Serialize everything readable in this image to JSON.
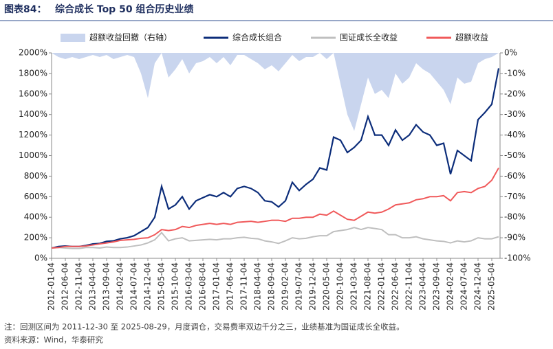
{
  "chart_data": {
    "type": "line",
    "figure_label": "图表84：",
    "title": "综合成长 Top 50 组合历史业绩",
    "note": "注：回测区间为 2011-12-30 至 2025-08-29，月度调仓，交易费率双边千分之三，业绩基准为国证成长全收益。",
    "source": "资料来源：Wind，华泰研究",
    "categories": [
      "2012-01-04",
      null,
      "2012-06-04",
      null,
      "2012-11-04",
      null,
      "2013-04-04",
      null,
      "2013-09-04",
      null,
      "2014-02-04",
      null,
      "2014-07-04",
      null,
      "2014-12-04",
      null,
      "2015-05-04",
      null,
      "2015-10-04",
      null,
      "2016-03-04",
      null,
      "2016-08-04",
      null,
      "2017-01-04",
      null,
      "2017-06-04",
      null,
      "2017-11-04",
      null,
      "2018-04-04",
      null,
      "2018-09-04",
      null,
      "2019-02-04",
      null,
      "2019-07-04",
      null,
      "2019-12-04",
      null,
      "2020-05-04",
      null,
      "2020-10-04",
      null,
      "2021-03-04",
      null,
      "2021-08-04",
      null,
      "2022-01-04",
      null,
      "2022-06-04",
      null,
      "2022-11-04",
      null,
      "2023-04-04",
      null,
      "2023-09-04",
      null,
      "2024-02-04",
      null,
      "2024-07-04",
      null,
      "2024-12-04",
      null,
      "2025-05-04",
      null
    ],
    "ylim": [
      0,
      2000
    ],
    "yticks": [
      {
        "value": 0,
        "label": "0%"
      },
      {
        "value": 200,
        "label": "200%"
      },
      {
        "value": 400,
        "label": "400%"
      },
      {
        "value": 600,
        "label": "600%"
      },
      {
        "value": 800,
        "label": "800%"
      },
      {
        "value": 1000,
        "label": "1000%"
      },
      {
        "value": 1200,
        "label": "1200%"
      },
      {
        "value": 1400,
        "label": "1400%"
      },
      {
        "value": 1600,
        "label": "1600%"
      },
      {
        "value": 1800,
        "label": "1800%"
      },
      {
        "value": 2000,
        "label": "2000%"
      }
    ],
    "y2lim": [
      -100,
      0
    ],
    "y2ticks": [
      {
        "value": -100,
        "label": "-100%"
      },
      {
        "value": -90,
        "label": "-90%"
      },
      {
        "value": -80,
        "label": "-80%"
      },
      {
        "value": -70,
        "label": "-70%"
      },
      {
        "value": -60,
        "label": "-60%"
      },
      {
        "value": -50,
        "label": "-50%"
      },
      {
        "value": -40,
        "label": "-40%"
      },
      {
        "value": -30,
        "label": "-30%"
      },
      {
        "value": -20,
        "label": "-20%"
      },
      {
        "value": -10,
        "label": "-10%"
      },
      {
        "value": 0,
        "label": "0%"
      }
    ],
    "series": [
      {
        "name": "超额收益回撤（右轴）",
        "kind": "area",
        "axis": "y2",
        "color": "#c9d5ee",
        "values": [
          0,
          -2,
          -3,
          -2,
          -3,
          -2,
          -1,
          -2,
          -1,
          -3,
          -2,
          -1,
          -2,
          -10,
          -22,
          -5,
          0,
          -12,
          -8,
          -3,
          -10,
          -5,
          -4,
          -2,
          -5,
          -2,
          -6,
          -1,
          -1,
          -3,
          -5,
          -8,
          -6,
          -9,
          -5,
          -1,
          -4,
          -2,
          -2,
          0,
          -3,
          0,
          -15,
          -30,
          -38,
          -25,
          -12,
          -20,
          -18,
          -22,
          -10,
          -15,
          -12,
          -5,
          -8,
          -10,
          -14,
          -18,
          -25,
          -12,
          -15,
          -14,
          -5,
          -3,
          -2,
          0
        ]
      },
      {
        "name": "综合成长组合",
        "color": "#0c2d7a",
        "values": [
          100,
          115,
          120,
          115,
          115,
          125,
          140,
          145,
          165,
          170,
          190,
          200,
          220,
          260,
          300,
          400,
          700,
          480,
          520,
          600,
          480,
          560,
          590,
          620,
          600,
          640,
          600,
          680,
          700,
          680,
          640,
          560,
          550,
          500,
          560,
          740,
          660,
          720,
          770,
          880,
          860,
          1180,
          1150,
          1030,
          1080,
          1150,
          1380,
          1200,
          1200,
          1100,
          1250,
          1150,
          1200,
          1300,
          1230,
          1200,
          1100,
          1120,
          820,
          1050,
          1000,
          950,
          1350,
          1420,
          1500,
          1850
        ]
      },
      {
        "name": "国证成长全收益",
        "color": "#bfbfbf",
        "values": [
          100,
          105,
          100,
          95,
          95,
          105,
          105,
          100,
          110,
          105,
          105,
          110,
          120,
          130,
          150,
          180,
          250,
          170,
          190,
          200,
          170,
          175,
          180,
          185,
          180,
          190,
          190,
          200,
          205,
          195,
          190,
          170,
          160,
          145,
          170,
          200,
          190,
          195,
          210,
          220,
          220,
          260,
          270,
          280,
          300,
          280,
          300,
          290,
          280,
          230,
          230,
          200,
          200,
          210,
          190,
          180,
          170,
          165,
          150,
          170,
          160,
          170,
          200,
          190,
          190,
          210
        ]
      },
      {
        "name": "超额收益",
        "color": "#f0595a",
        "values": [
          100,
          105,
          115,
          115,
          115,
          120,
          130,
          140,
          150,
          160,
          175,
          180,
          185,
          195,
          200,
          230,
          280,
          270,
          280,
          310,
          300,
          320,
          330,
          340,
          330,
          340,
          330,
          350,
          355,
          360,
          350,
          360,
          370,
          370,
          360,
          390,
          390,
          400,
          400,
          430,
          420,
          460,
          420,
          380,
          370,
          410,
          450,
          440,
          450,
          480,
          520,
          530,
          540,
          570,
          580,
          600,
          600,
          610,
          560,
          640,
          650,
          640,
          680,
          700,
          760,
          880
        ]
      }
    ]
  }
}
